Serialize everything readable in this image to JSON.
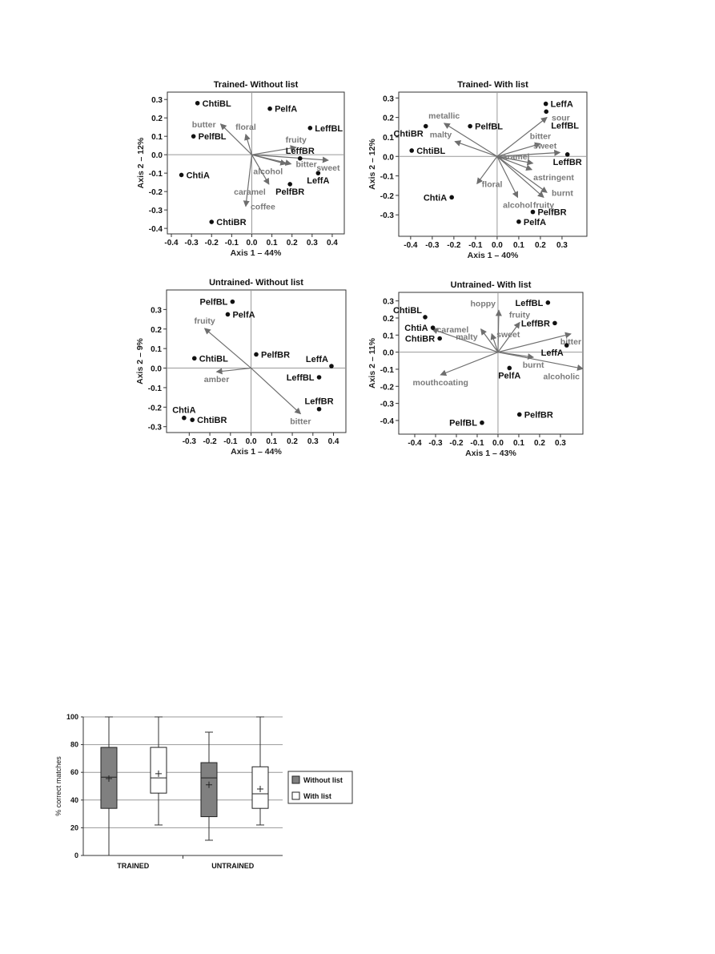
{
  "chart_data": [
    {
      "type": "scatter",
      "title": "Trained- Without list",
      "xlabel": "Axis 1 – 44%",
      "ylabel": "Axis 2 – 12%",
      "xlim": [
        -0.42,
        0.46
      ],
      "ylim": [
        -0.43,
        0.34
      ],
      "xticks": [
        -0.4,
        -0.3,
        -0.2,
        -0.1,
        0,
        0.1,
        0.2,
        0.3,
        0.4
      ],
      "xtick_labels": [
        "-0.4",
        "-0.3",
        "-0.2",
        "-0.1",
        "0.0",
        "0.1",
        "0.2",
        "0.3",
        "0.4"
      ],
      "yticks": [
        -0.4,
        -0.3,
        -0.2,
        -0.1,
        0,
        0.1,
        0.2,
        0.3
      ],
      "ytick_labels": [
        "-0.4",
        "-0.3",
        "-0.2",
        "-0.1",
        "0.0",
        "0.1",
        "0.2",
        "0.3"
      ],
      "points": [
        {
          "label": "ChtiBL",
          "x": -0.27,
          "y": 0.28,
          "pos": "right"
        },
        {
          "label": "PelfA",
          "x": 0.09,
          "y": 0.25,
          "pos": "right"
        },
        {
          "label": "LeffBL",
          "x": 0.29,
          "y": 0.145,
          "pos": "right"
        },
        {
          "label": "PelfBL",
          "x": -0.29,
          "y": 0.1,
          "pos": "right"
        },
        {
          "label": "LeffBR",
          "x": 0.24,
          "y": -0.02,
          "pos": "above"
        },
        {
          "label": "ChtiA",
          "x": -0.35,
          "y": -0.11,
          "pos": "right"
        },
        {
          "label": "LeffA",
          "x": 0.33,
          "y": -0.1,
          "pos": "below"
        },
        {
          "label": "PelfBR",
          "x": 0.19,
          "y": -0.16,
          "pos": "below"
        },
        {
          "label": "ChtiBR",
          "x": -0.2,
          "y": -0.365,
          "pos": "right"
        }
      ],
      "vectors": [
        {
          "label": "butter",
          "x": -0.155,
          "y": 0.167,
          "pos": "left"
        },
        {
          "label": "floral",
          "x": -0.03,
          "y": 0.11,
          "pos": "above"
        },
        {
          "label": "fruity",
          "x": 0.22,
          "y": 0.04,
          "pos": "above"
        },
        {
          "label": "sweet",
          "x": 0.38,
          "y": -0.03,
          "pos": "below"
        },
        {
          "label": "bitter",
          "x": 0.195,
          "y": -0.05,
          "pos": "right"
        },
        {
          "label": "alcohol",
          "x": 0.17,
          "y": -0.05,
          "pos": "belowleft"
        },
        {
          "label": "caramel",
          "x": 0.085,
          "y": -0.16,
          "pos": "belowleft"
        },
        {
          "label": "coffee",
          "x": -0.03,
          "y": -0.28,
          "pos": "right"
        }
      ]
    },
    {
      "type": "scatter",
      "title": "Trained- With list",
      "xlabel": "Axis 1 – 40%",
      "ylabel": "Axis 2 – 12%",
      "xlim": [
        -0.455,
        0.415
      ],
      "ylim": [
        -0.41,
        0.33
      ],
      "xticks": [
        -0.4,
        -0.3,
        -0.2,
        -0.1,
        0,
        0.1,
        0.2,
        0.3
      ],
      "xtick_labels": [
        "-0.4",
        "-0.3",
        "-0.2",
        "-0.1",
        "0.0",
        "0.1",
        "0.2",
        "0.3"
      ],
      "yticks": [
        -0.3,
        -0.2,
        -0.1,
        0,
        0.1,
        0.2,
        0.3
      ],
      "ytick_labels": [
        "-0.3",
        "-0.2",
        "-0.1",
        "0.0",
        "0.1",
        "0.2",
        "0.3"
      ],
      "points": [
        {
          "label": "LeffA",
          "x": 0.225,
          "y": 0.27,
          "pos": "right"
        },
        {
          "label": "LeffBL",
          "x": 0.227,
          "y": 0.23,
          "pos": "right"
        },
        {
          "label": "ChtiBR",
          "x": -0.33,
          "y": 0.155,
          "pos": "belowleft"
        },
        {
          "label": "PelfBL",
          "x": -0.125,
          "y": 0.155,
          "pos": "right"
        },
        {
          "label": "ChtiBL",
          "x": -0.395,
          "y": 0.03,
          "pos": "right"
        },
        {
          "label": "LeffBR",
          "x": 0.325,
          "y": 0.01,
          "pos": "below"
        },
        {
          "label": "ChtiA",
          "x": -0.21,
          "y": -0.21,
          "pos": "left"
        },
        {
          "label": "PelfBR",
          "x": 0.165,
          "y": -0.285,
          "pos": "right"
        },
        {
          "label": "PelfA",
          "x": 0.1,
          "y": -0.335,
          "pos": "right"
        }
      ],
      "vectors": [
        {
          "label": "metallic",
          "x": -0.245,
          "y": 0.17,
          "pos": "above"
        },
        {
          "label": "malty",
          "x": -0.195,
          "y": 0.077,
          "pos": "aboveleft"
        },
        {
          "label": "sour",
          "x": 0.23,
          "y": 0.2,
          "pos": "right"
        },
        {
          "label": "bitter",
          "x": 0.2,
          "y": 0.065,
          "pos": "above"
        },
        {
          "label": "sweet",
          "x": 0.29,
          "y": 0.02,
          "pos": "aboveleft"
        },
        {
          "label": "caramel",
          "x": 0.165,
          "y": -0.035,
          "pos": "aboveleft"
        },
        {
          "label": "astringent",
          "x": 0.16,
          "y": -0.068,
          "pos": "belowright"
        },
        {
          "label": "floral",
          "x": -0.093,
          "y": -0.14,
          "pos": "right"
        },
        {
          "label": "burnt",
          "x": 0.23,
          "y": -0.185,
          "pos": "right"
        },
        {
          "label": "fruity",
          "x": 0.215,
          "y": -0.21,
          "pos": "below"
        },
        {
          "label": "alcohol",
          "x": 0.095,
          "y": -0.21,
          "pos": "below"
        }
      ]
    },
    {
      "type": "scatter",
      "title": "Untrained- Without list",
      "xlabel": "Axis 1 – 44%",
      "ylabel": "Axis 2 – 9%",
      "xlim": [
        -0.41,
        0.46
      ],
      "ylim": [
        -0.33,
        0.4
      ],
      "xticks": [
        -0.3,
        -0.2,
        -0.1,
        0,
        0.1,
        0.2,
        0.3,
        0.4
      ],
      "xtick_labels": [
        "-0.3",
        "-0.2",
        "-0.1",
        "0.0",
        "0.1",
        "0.2",
        "0.3",
        "0.4"
      ],
      "yticks": [
        -0.3,
        -0.2,
        -0.1,
        0,
        0.1,
        0.2,
        0.3
      ],
      "ytick_labels": [
        "-0.3",
        "-0.2",
        "-0.1",
        "0.0",
        "0.1",
        "0.2",
        "0.3"
      ],
      "points": [
        {
          "label": "PelfBL",
          "x": -0.09,
          "y": 0.34,
          "pos": "left"
        },
        {
          "label": "PelfA",
          "x": -0.113,
          "y": 0.275,
          "pos": "right"
        },
        {
          "label": "ChtiBL",
          "x": -0.275,
          "y": 0.05,
          "pos": "right"
        },
        {
          "label": "PelfBR",
          "x": 0.025,
          "y": 0.07,
          "pos": "right"
        },
        {
          "label": "LeffA",
          "x": 0.39,
          "y": 0.01,
          "pos": "aboveleft"
        },
        {
          "label": "LeffBL",
          "x": 0.33,
          "y": -0.047,
          "pos": "left"
        },
        {
          "label": "LeffBR",
          "x": 0.33,
          "y": -0.21,
          "pos": "above"
        },
        {
          "label": "ChtiA",
          "x": -0.325,
          "y": -0.255,
          "pos": "above"
        },
        {
          "label": "ChtiBR",
          "x": -0.285,
          "y": -0.265,
          "pos": "right"
        }
      ],
      "vectors": [
        {
          "label": "fruity",
          "x": -0.225,
          "y": 0.203,
          "pos": "above"
        },
        {
          "label": "amber",
          "x": -0.167,
          "y": -0.019,
          "pos": "below"
        },
        {
          "label": "bitter",
          "x": 0.24,
          "y": -0.234,
          "pos": "below"
        }
      ]
    },
    {
      "type": "scatter",
      "title": "Untrained- With list",
      "xlabel": "Axis 1 – 43%",
      "ylabel": "Axis 2 – 11%",
      "xlim": [
        -0.477,
        0.408
      ],
      "ylim": [
        -0.48,
        0.35
      ],
      "xticks": [
        -0.4,
        -0.3,
        -0.2,
        -0.1,
        0,
        0.1,
        0.2,
        0.3
      ],
      "xtick_labels": [
        "-0.4",
        "-0.3",
        "-0.2",
        "-0.1",
        "0.0",
        "0.1",
        "0.2",
        "0.3"
      ],
      "yticks": [
        -0.4,
        -0.3,
        -0.2,
        -0.1,
        0,
        0.1,
        0.2,
        0.3
      ],
      "ytick_labels": [
        "-0.4",
        "-0.3",
        "-0.2",
        "-0.1",
        "0.0",
        "0.1",
        "0.2",
        "0.3"
      ],
      "points": [
        {
          "label": "ChtiBL",
          "x": -0.35,
          "y": 0.205,
          "pos": "aboveleft"
        },
        {
          "label": "ChtiA",
          "x": -0.313,
          "y": 0.143,
          "pos": "left"
        },
        {
          "label": "ChtiBR",
          "x": -0.28,
          "y": 0.08,
          "pos": "left"
        },
        {
          "label": "LeffBL",
          "x": 0.24,
          "y": 0.29,
          "pos": "left"
        },
        {
          "label": "LeffBR",
          "x": 0.273,
          "y": 0.17,
          "pos": "left"
        },
        {
          "label": "LeffA",
          "x": 0.33,
          "y": 0.04,
          "pos": "belowleft"
        },
        {
          "label": "PelfA",
          "x": 0.055,
          "y": -0.093,
          "pos": "below"
        },
        {
          "label": "PelfBR",
          "x": 0.103,
          "y": -0.365,
          "pos": "right"
        },
        {
          "label": "PelfBL",
          "x": -0.077,
          "y": -0.413,
          "pos": "left"
        }
      ],
      "vectors": [
        {
          "label": "hoppy",
          "x": 0.004,
          "y": 0.245,
          "pos": "aboveleft"
        },
        {
          "label": "fruity",
          "x": 0.104,
          "y": 0.174,
          "pos": "above"
        },
        {
          "label": "sweet",
          "x": -0.03,
          "y": 0.107,
          "pos": "right"
        },
        {
          "label": "malty",
          "x": -0.082,
          "y": 0.135,
          "pos": "belowleft"
        },
        {
          "label": "caramel",
          "x": -0.317,
          "y": 0.135,
          "pos": "right"
        },
        {
          "label": "bitter",
          "x": 0.35,
          "y": 0.107,
          "pos": "below"
        },
        {
          "label": "burnt",
          "x": 0.17,
          "y": -0.03,
          "pos": "below"
        },
        {
          "label": "alcoholic",
          "x": 0.408,
          "y": -0.097,
          "pos": "belowleft"
        },
        {
          "label": "mouthcoating",
          "x": -0.276,
          "y": -0.133,
          "pos": "below"
        }
      ]
    },
    {
      "type": "box",
      "title": "",
      "ylabel": "% correct matches",
      "ylim": [
        0,
        100
      ],
      "yticks": [
        0,
        20,
        40,
        60,
        80,
        100
      ],
      "ytick_labels": [
        "0",
        "20",
        "40",
        "60",
        "80",
        "100"
      ],
      "grid": true,
      "categories": [
        "TRAINED",
        "UNTRAINED"
      ],
      "legend": {
        "placement": "right",
        "entries": [
          {
            "name": "Without list",
            "color": "#808080"
          },
          {
            "name": "With list",
            "color": "#ffffff"
          }
        ]
      },
      "boxes": [
        {
          "group": "TRAINED",
          "series": "Without list",
          "min": 0,
          "q1": 34,
          "median": 56.5,
          "q3": 78,
          "max": 100,
          "mean": 55.5
        },
        {
          "group": "TRAINED",
          "series": "With list",
          "min": 22,
          "q1": 45,
          "median": 56,
          "q3": 78,
          "max": 100,
          "mean": 59
        },
        {
          "group": "UNTRAINED",
          "series": "Without list",
          "min": 11,
          "q1": 28,
          "median": 56,
          "q3": 67,
          "max": 89,
          "mean": 51
        },
        {
          "group": "UNTRAINED",
          "series": "With list",
          "min": 22,
          "q1": 34,
          "median": 44.5,
          "q3": 64,
          "max": 100,
          "mean": 48
        }
      ]
    }
  ],
  "colors": {
    "point": "#111111",
    "vector": "#777777",
    "box_without": "#808080",
    "box_with": "#ffffff"
  }
}
